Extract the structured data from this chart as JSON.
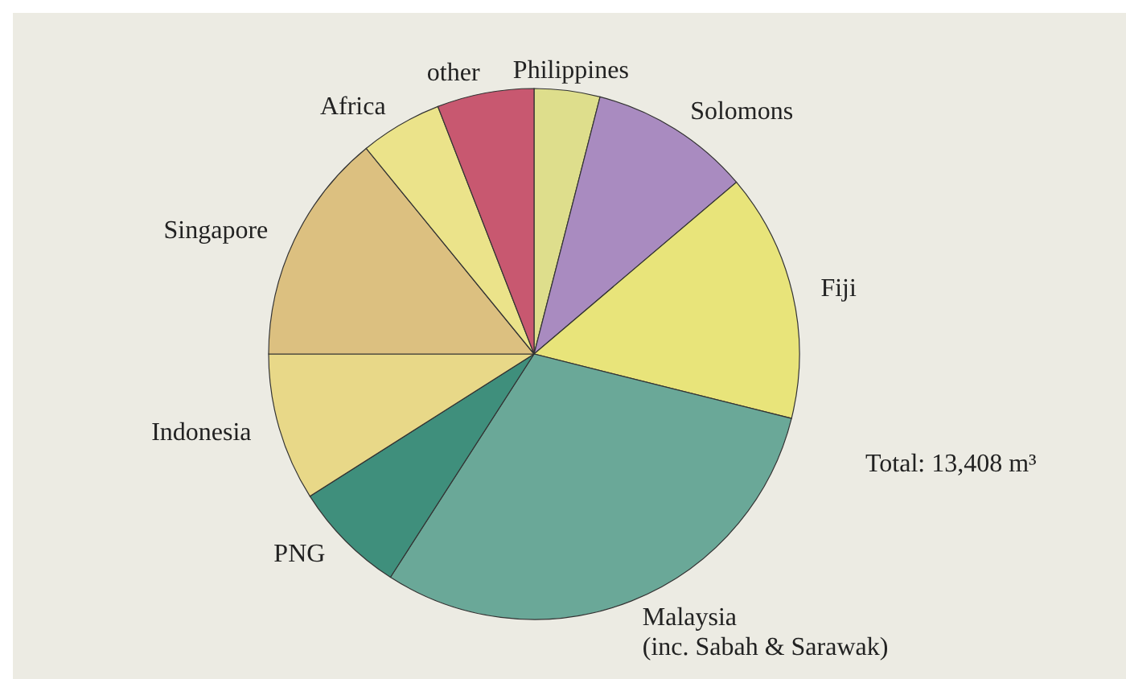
{
  "chart_data": {
    "type": "pie",
    "categories": [
      "Philippines",
      "Solomons",
      "Fiji",
      "Malaysia\n(inc. Sabah & Sarawak)",
      "PNG",
      "Indonesia",
      "Singapore",
      "Africa",
      "other"
    ],
    "values": [
      4.0,
      9.8,
      15.1,
      30.2,
      6.9,
      9.0,
      14.1,
      5.0,
      5.9
    ],
    "colors": [
      "#dede8c",
      "#a98bc0",
      "#e8e47a",
      "#6aa898",
      "#3f8f7c",
      "#e8d888",
      "#dcc080",
      "#ebe38a",
      "#c85870"
    ],
    "annotations": [
      "Total: 13,408 m³"
    ]
  }
}
